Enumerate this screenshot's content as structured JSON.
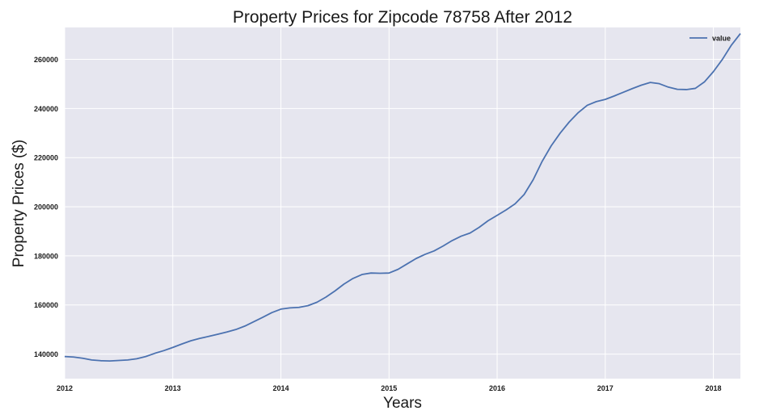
{
  "chart_data": {
    "type": "line",
    "title": "Property Prices for Zipcode 78758 After 2012",
    "xlabel": "Years",
    "ylabel": "Property Prices ($)",
    "xlim": [
      "2012-01",
      "2018-04"
    ],
    "ylim": [
      130000,
      273000
    ],
    "x_ticks": [
      "2012",
      "2013",
      "2014",
      "2015",
      "2016",
      "2017",
      "2018"
    ],
    "y_ticks": [
      140000,
      160000,
      180000,
      200000,
      220000,
      240000,
      260000
    ],
    "grid": true,
    "legend_position": "top-right",
    "background_color": "#e6e6ef",
    "series": [
      {
        "name": "value",
        "color": "#4c72b0",
        "points": [
          [
            "2012-01",
            139000
          ],
          [
            "2012-02",
            138800
          ],
          [
            "2012-03",
            138300
          ],
          [
            "2012-04",
            137600
          ],
          [
            "2012-05",
            137300
          ],
          [
            "2012-06",
            137200
          ],
          [
            "2012-07",
            137400
          ],
          [
            "2012-08",
            137600
          ],
          [
            "2012-09",
            138100
          ],
          [
            "2012-10",
            139000
          ],
          [
            "2012-11",
            140300
          ],
          [
            "2012-12",
            141400
          ],
          [
            "2013-01",
            142700
          ],
          [
            "2013-02",
            144100
          ],
          [
            "2013-03",
            145400
          ],
          [
            "2013-04",
            146400
          ],
          [
            "2013-05",
            147200
          ],
          [
            "2013-06",
            148100
          ],
          [
            "2013-07",
            149000
          ],
          [
            "2013-08",
            150000
          ],
          [
            "2013-09",
            151400
          ],
          [
            "2013-10",
            153200
          ],
          [
            "2013-11",
            155000
          ],
          [
            "2013-12",
            156900
          ],
          [
            "2014-01",
            158300
          ],
          [
            "2014-02",
            158800
          ],
          [
            "2014-03",
            159000
          ],
          [
            "2014-04",
            159700
          ],
          [
            "2014-05",
            161100
          ],
          [
            "2014-06",
            163200
          ],
          [
            "2014-07",
            165700
          ],
          [
            "2014-08",
            168500
          ],
          [
            "2014-09",
            170800
          ],
          [
            "2014-10",
            172400
          ],
          [
            "2014-11",
            173000
          ],
          [
            "2014-12",
            172900
          ],
          [
            "2015-01",
            173000
          ],
          [
            "2015-02",
            174500
          ],
          [
            "2015-03",
            176700
          ],
          [
            "2015-04",
            178900
          ],
          [
            "2015-05",
            180600
          ],
          [
            "2015-06",
            182000
          ],
          [
            "2015-07",
            184000
          ],
          [
            "2015-08",
            186200
          ],
          [
            "2015-09",
            188000
          ],
          [
            "2015-10",
            189300
          ],
          [
            "2015-11",
            191600
          ],
          [
            "2015-12",
            194300
          ],
          [
            "2016-01",
            196500
          ],
          [
            "2016-02",
            198700
          ],
          [
            "2016-03",
            201200
          ],
          [
            "2016-04",
            205000
          ],
          [
            "2016-05",
            211000
          ],
          [
            "2016-06",
            218500
          ],
          [
            "2016-07",
            224800
          ],
          [
            "2016-08",
            230000
          ],
          [
            "2016-09",
            234500
          ],
          [
            "2016-10",
            238300
          ],
          [
            "2016-11",
            241300
          ],
          [
            "2016-12",
            242800
          ],
          [
            "2017-01",
            243700
          ],
          [
            "2017-02",
            245100
          ],
          [
            "2017-03",
            246600
          ],
          [
            "2017-04",
            248100
          ],
          [
            "2017-05",
            249500
          ],
          [
            "2017-06",
            250600
          ],
          [
            "2017-07",
            250100
          ],
          [
            "2017-08",
            248700
          ],
          [
            "2017-09",
            247800
          ],
          [
            "2017-10",
            247700
          ],
          [
            "2017-11",
            248200
          ],
          [
            "2017-12",
            250800
          ],
          [
            "2018-01",
            255000
          ],
          [
            "2018-02",
            260000
          ],
          [
            "2018-03",
            265800
          ],
          [
            "2018-04",
            270500
          ]
        ]
      }
    ]
  }
}
